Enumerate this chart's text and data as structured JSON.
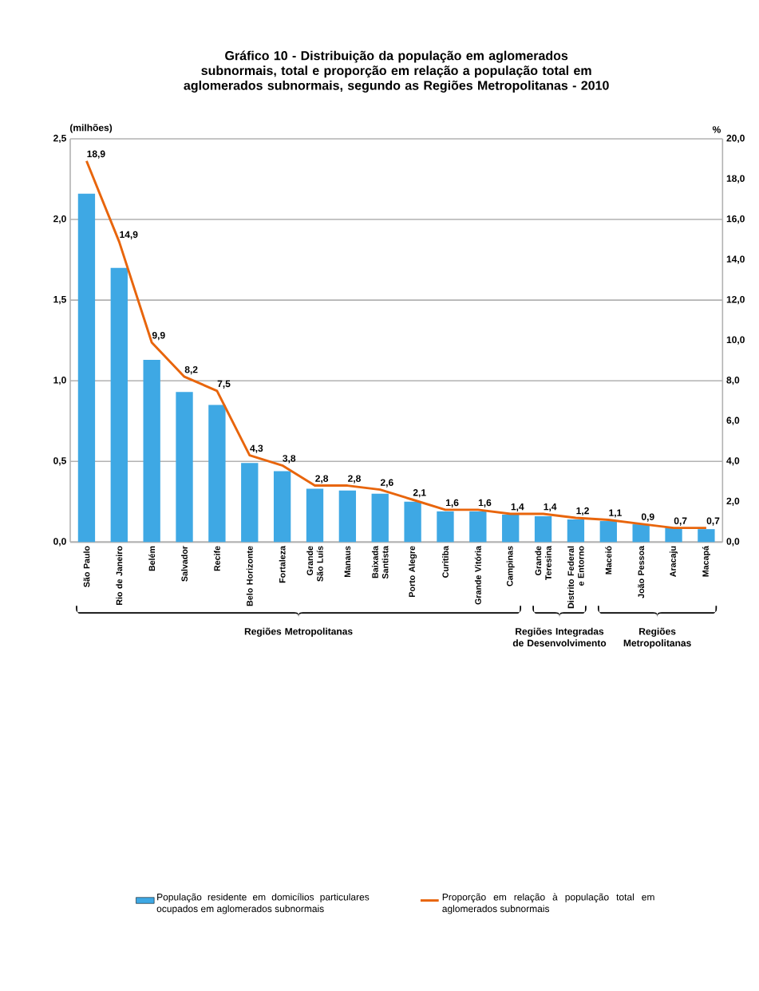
{
  "chart_data": {
    "type": "bar",
    "title": "Gráfico 10 - Distribuição da população em aglomerados subnormais, total e proporção em relação a população total em aglomerados subnormais, segundo as Regiões Metropolitanas - 2010",
    "ylabel": "(milhões)",
    "y2label": "%",
    "categories": [
      "São Paulo",
      "Rio de Janeiro",
      "Belém",
      "Salvador",
      "Recife",
      "Belo Horizonte",
      "Fortaleza",
      "Grande São Luís",
      "Manaus",
      "Baixada Santista",
      "Porto Alegre",
      "Curitiba",
      "Grande Vitória",
      "Campinas",
      "Grande Teresina",
      "Distrito Federal e Entorno",
      "Maceió",
      "João Pessoa",
      "Aracaju",
      "Macapá"
    ],
    "series": [
      {
        "name": "População residente em domicílios particulares ocupados em aglomerados subnormais",
        "type": "bar",
        "color": "#3ea8e4",
        "values": [
          2.16,
          1.7,
          1.13,
          0.93,
          0.85,
          0.49,
          0.44,
          0.33,
          0.32,
          0.3,
          0.25,
          0.19,
          0.19,
          0.17,
          0.16,
          0.14,
          0.13,
          0.11,
          0.09,
          0.08
        ]
      },
      {
        "name": "Proporção em relação à população total em aglomerados subnormais",
        "type": "line",
        "axis": "y2",
        "color": "#e8650c",
        "values": [
          18.9,
          14.9,
          9.9,
          8.2,
          7.5,
          4.3,
          3.8,
          2.8,
          2.8,
          2.6,
          2.1,
          1.6,
          1.6,
          1.4,
          1.4,
          1.2,
          1.1,
          0.9,
          0.7,
          0.7
        ],
        "value_labels": [
          "18,9",
          "14,9",
          "9,9",
          "8,2",
          "7,5",
          "4,3",
          "3,8",
          "2,8",
          "2,8",
          "2,6",
          "2,1",
          "1,6",
          "1,6",
          "1,4",
          "1,4",
          "1,2",
          "1,1",
          "0,9",
          "0,7",
          "0,7"
        ]
      }
    ],
    "ylim": [
      0,
      2.5
    ],
    "yticks": [
      {
        "value": 0,
        "label": "0,0"
      },
      {
        "value": 0.5,
        "label": "0,5"
      },
      {
        "value": 1,
        "label": "1,0"
      },
      {
        "value": 1.5,
        "label": "1,5"
      },
      {
        "value": 2,
        "label": "2,0"
      },
      {
        "value": 2.5,
        "label": "2,5"
      }
    ],
    "y2lim": [
      0,
      20
    ],
    "y2ticks": [
      {
        "value": 0,
        "label": "0,0"
      },
      {
        "value": 2,
        "label": "2,0"
      },
      {
        "value": 4,
        "label": "4,0"
      },
      {
        "value": 6,
        "label": "6,0"
      },
      {
        "value": 8,
        "label": "8,0"
      },
      {
        "value": 10,
        "label": "10,0"
      },
      {
        "value": 12,
        "label": "12,0"
      },
      {
        "value": 14,
        "label": "14,0"
      },
      {
        "value": 16,
        "label": "16,0"
      },
      {
        "value": 18,
        "label": "18,0"
      },
      {
        "value": 20,
        "label": "20,0"
      }
    ],
    "annotations": [
      "Regiões Metropolitanas",
      "Regiões Integradas de Desenvolvimento",
      "Regiões Metropolitanas"
    ],
    "grid": "y",
    "legend": "bottom"
  }
}
